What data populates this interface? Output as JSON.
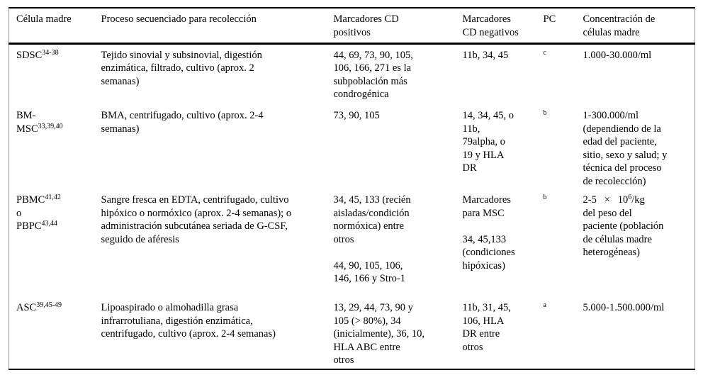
{
  "colors": {
    "text": "#000000",
    "rules": "#000000",
    "background": "#ffffff"
  },
  "table": {
    "columns": [
      {
        "key": "cell-type",
        "label": "Célula madre"
      },
      {
        "key": "process",
        "label": "Proceso secuenciado para recolección"
      },
      {
        "key": "cd-positive",
        "label": "Marcadores CD\npositivos"
      },
      {
        "key": "cd-negative",
        "label": "Marcadores\nCD negativos"
      },
      {
        "key": "pc",
        "label": "PC"
      },
      {
        "key": "concentration",
        "label": "Concentración de\ncélulas madre"
      }
    ],
    "rows": [
      {
        "cells": [
          [
            {
              "t": "SDSC"
            },
            {
              "sup": "34-38"
            }
          ],
          [
            {
              "t": "Tejido sinovial y subsinovial, digestión\nenzimática, filtrado, cultivo (aprox. 2\nsemanas)"
            }
          ],
          [
            {
              "t": "44, 69, 73, 90, 105,\n106, 166, 271 es la\nsubpoblación más\ncondrogénica"
            }
          ],
          [
            {
              "t": "11b, 34, 45"
            }
          ],
          [
            {
              "sup": "c"
            }
          ],
          [
            {
              "t": "1.000-30.000/ml"
            }
          ]
        ]
      },
      {
        "cells": [
          [
            {
              "t": "BM-\nMSC"
            },
            {
              "sup": "33,39,40"
            }
          ],
          [
            {
              "t": "BMA, centrifugado, cultivo (aprox. 2-4\nsemanas)"
            }
          ],
          [
            {
              "t": "73, 90, 105"
            }
          ],
          [
            {
              "t": "14, 34, 45, o\n11b,\n79alpha, o\n19 y HLA\nDR"
            }
          ],
          [
            {
              "sup": "b"
            }
          ],
          [
            {
              "t": "1-300.000/ml\n(dependiendo de la\nedad del paciente,\nsitio, sexo y salud; y\ntécnica del proceso\nde recolección)"
            }
          ]
        ]
      },
      {
        "cells": [
          [
            {
              "t": "PBMC"
            },
            {
              "sup": "41,42"
            },
            {
              "t": "\no\nPBPC"
            },
            {
              "sup": "43,44"
            }
          ],
          [
            {
              "t": "Sangre fresca en EDTA, centrifugado, cultivo\nhipóxico o normóxico (aprox. 2-4 semanas); o\nadministración subcutánea seriada de G-CSF,\nseguido de aféresis"
            }
          ],
          [
            {
              "t": "34, 45, 133 (recién\naisladas/condición\nnormóxica) entre\notros\n\n44, 90, 105, 106,\n146, 166 y Stro-1"
            }
          ],
          [
            {
              "t": "Marcadores\npara MSC\n\n34, 45,133\n(condiciones\nhipóxicas)"
            }
          ],
          [
            {
              "sup": "b"
            }
          ],
          [
            {
              "t": "2-5   ×   10"
            },
            {
              "sup": "6"
            },
            {
              "t": "/kg\ndel peso del\npaciente (población\nde células madre\nheterogéneas)"
            }
          ]
        ]
      },
      {
        "cells": [
          [
            {
              "t": "ASC"
            },
            {
              "sup": "39,45-49"
            }
          ],
          [
            {
              "t": "Lipoaspirado o almohadilla grasa\ninfrarrotuliana, digestión enzimática,\ncentrifugado, cultivo (aprox. 2-4 semanas)"
            }
          ],
          [
            {
              "t": "13, 29, 44, 73, 90 y\n105 (> 80%), 34\n(inicialmente), 36, 10,\nHLA ABC entre\notros"
            }
          ],
          [
            {
              "t": "11b, 31, 45,\n106, HLA\nDR entre\notros"
            }
          ],
          [
            {
              "sup": "a"
            }
          ],
          [
            {
              "t": "5.000-1.500.000/ml"
            }
          ]
        ]
      }
    ]
  }
}
